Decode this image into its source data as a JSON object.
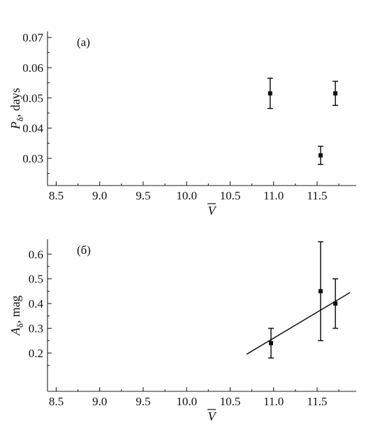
{
  "chart_data": [
    {
      "type": "scatter",
      "panel_label": "(a)",
      "xlabel": "V",
      "ylabel_main": "P",
      "ylabel_sub": "δ",
      "ylabel_rest": ", days",
      "xlim": [
        8.4,
        11.95
      ],
      "ylim": [
        0.021,
        0.072
      ],
      "xticks": [
        8.5,
        9.0,
        9.5,
        10.0,
        10.5,
        11.0,
        11.5
      ],
      "xtick_labels": [
        "8.5",
        "9.0",
        "9.5",
        "10.0",
        "10.5",
        "11.0",
        "11.5"
      ],
      "yticks": [
        0.03,
        0.04,
        0.05,
        0.06,
        0.07
      ],
      "ytick_labels": [
        "0.03",
        "0.04",
        "0.05",
        "0.06",
        "0.07"
      ],
      "points": [
        {
          "x": 10.96,
          "y": 0.0515,
          "ylo": 0.0465,
          "yhi": 0.0565
        },
        {
          "x": 11.54,
          "y": 0.031,
          "ylo": 0.028,
          "yhi": 0.034
        },
        {
          "x": 11.71,
          "y": 0.0515,
          "ylo": 0.0475,
          "yhi": 0.0555
        }
      ],
      "fit": null
    },
    {
      "type": "scatter",
      "panel_label": "(б)",
      "xlabel": "V",
      "ylabel_main": "A",
      "ylabel_sub": "δ",
      "ylabel_rest": ", mag",
      "xlim": [
        8.4,
        11.95
      ],
      "ylim": [
        0.045,
        0.66
      ],
      "xticks": [
        8.5,
        9.0,
        9.5,
        10.0,
        10.5,
        11.0,
        11.5
      ],
      "xtick_labels": [
        "8.5",
        "9.0",
        "9.5",
        "10.0",
        "10.5",
        "11.0",
        "11.5"
      ],
      "yticks": [
        0.2,
        0.3,
        0.4,
        0.5,
        0.6
      ],
      "ytick_labels": [
        "0.2",
        "0.3",
        "0.4",
        "0.5",
        "0.6"
      ],
      "points": [
        {
          "x": 10.97,
          "y": 0.24,
          "ylo": 0.18,
          "yhi": 0.3
        },
        {
          "x": 11.54,
          "y": 0.45,
          "ylo": 0.25,
          "yhi": 0.65
        },
        {
          "x": 11.71,
          "y": 0.4,
          "ylo": 0.3,
          "yhi": 0.5
        }
      ],
      "fit": {
        "x": [
          10.69,
          11.88
        ],
        "y": [
          0.195,
          0.445
        ]
      }
    }
  ]
}
